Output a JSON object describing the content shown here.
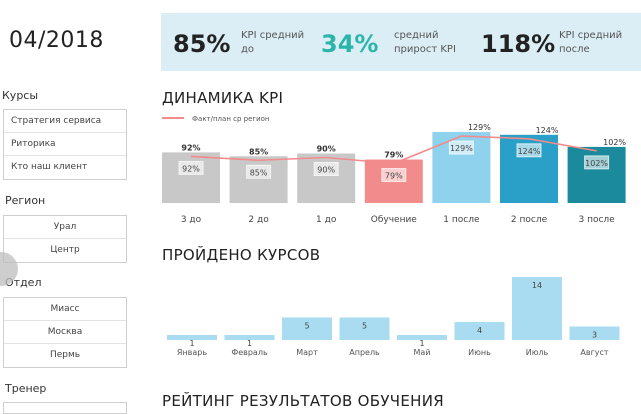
{
  "header": {
    "date": "04/2018"
  },
  "kpis": [
    {
      "value": "85%",
      "label_line1": "KPI средний",
      "label_line2": "до",
      "color": "#222222"
    },
    {
      "value": "34%",
      "label_line1": "средний",
      "label_line2": "прирост KPI",
      "color": "#2bb5a8"
    },
    {
      "value": "118%",
      "label_line1": "KPI средний",
      "label_line2": "после",
      "color": "#222222"
    }
  ],
  "filters": {
    "courses": {
      "label": "Курсы",
      "items": [
        "Стратегия сервиса",
        "Риторика",
        "Кто наш клиент"
      ]
    },
    "region": {
      "label": "Регион",
      "items": [
        "Урал",
        "Центр"
      ]
    },
    "department": {
      "label": "Отдел",
      "items": [
        "Миасс",
        "Москва",
        "Пермь"
      ]
    },
    "trainer": {
      "label": "Тренер"
    }
  },
  "sections": {
    "kpi_dynamics_title": "ДИНАМИКА KPI",
    "courses_done_title": "ПРОЙДЕНО КУРСОВ",
    "rating_title": "РЕЙТИНГ РЕЗУЛЬТАТОВ ОБУЧЕНИЯ"
  },
  "chart_data": [
    {
      "type": "bar",
      "title": "ДИНАМИКА KPI",
      "categories": [
        "3 до",
        "2 до",
        "1 до",
        "Обучение",
        "1 после",
        "2 после",
        "3 после"
      ],
      "values": [
        92,
        85,
        90,
        79,
        129,
        124,
        102
      ],
      "value_labels": [
        "92%",
        "85%",
        "90%",
        "79%",
        "129%",
        "124%",
        "102%"
      ],
      "bar_colors": [
        "#c8c8c8",
        "#c8c8c8",
        "#c8c8c8",
        "#f28b8b",
        "#8fd2ee",
        "#2aa0c8",
        "#1b8a9c"
      ],
      "line_series": {
        "name": "Факт/план ср регион",
        "values": [
          92,
          85,
          90,
          79,
          129,
          124,
          102
        ],
        "labels": [
          "92%",
          "85%",
          "90%",
          "79%",
          "129%",
          "124%",
          "102%"
        ],
        "color": "#f28b8b"
      },
      "legend": "top-left"
    },
    {
      "type": "bar",
      "title": "ПРОЙДЕНО КУРСОВ",
      "categories": [
        "Январь",
        "Февраль",
        "Март",
        "Апрель",
        "Май",
        "Июнь",
        "Июль",
        "Август"
      ],
      "values": [
        1,
        1,
        5,
        5,
        1,
        4,
        14,
        3
      ],
      "bar_color": "#a9dcf0"
    }
  ]
}
